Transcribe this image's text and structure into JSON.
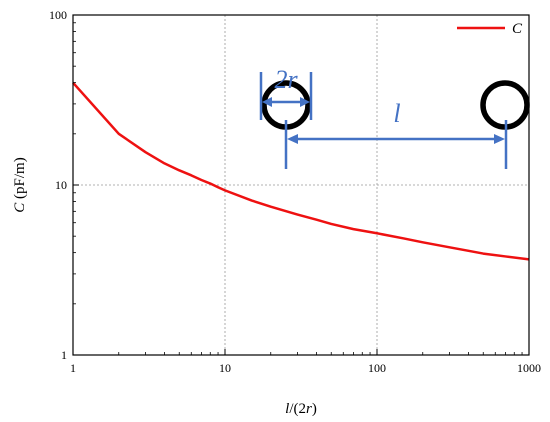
{
  "chart_data": {
    "type": "line",
    "xscale": "log",
    "yscale": "log",
    "xlim": [
      1,
      1000
    ],
    "ylim": [
      1,
      100
    ],
    "xticks": [
      "1",
      "10",
      "100",
      "1000"
    ],
    "yticks": [
      "1",
      "10",
      "100"
    ],
    "xlabel": {
      "text": "l/(2r)",
      "italic_part": "l",
      "plain_part": "/(2",
      "italic_part2": "r",
      "plain_part2": ")"
    },
    "ylabel": {
      "italic_part": "C",
      "plain_part": " (pF/m)"
    },
    "grid": "dashed at major ticks",
    "legend_position": "top-right",
    "series": [
      {
        "name": "C",
        "color": "#ee1111",
        "x": [
          1,
          2,
          3,
          4,
          5,
          6,
          7,
          8,
          9,
          10,
          15,
          20,
          30,
          40,
          50,
          70,
          100,
          150,
          200,
          300,
          400,
          500,
          700,
          1000
        ],
        "y": [
          40,
          20,
          15.6,
          13.4,
          12.2,
          11.4,
          10.7,
          10.2,
          9.7,
          9.3,
          8.1,
          7.45,
          6.7,
          6.25,
          5.9,
          5.5,
          5.2,
          4.85,
          4.6,
          4.3,
          4.1,
          3.95,
          3.8,
          3.65
        ]
      }
    ],
    "diagram": {
      "label_diameter": "2r",
      "label_separation": "l",
      "color_arrows": "#4472c4",
      "color_circles": "#000000"
    }
  }
}
